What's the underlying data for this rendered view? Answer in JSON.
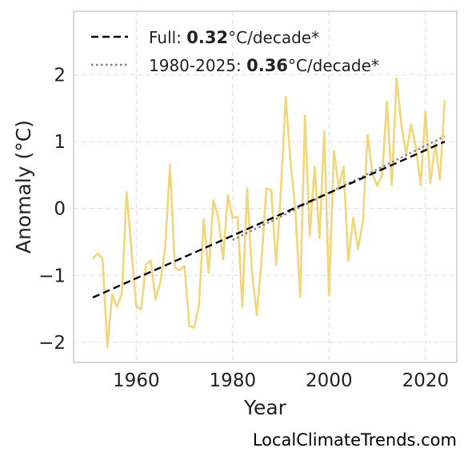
{
  "chart_data": {
    "type": "line",
    "title": "",
    "xlabel": "Year",
    "ylabel": "Anomaly (°C)",
    "xlim": [
      1947,
      2026.5
    ],
    "ylim": [
      -2.3,
      2.95
    ],
    "xticks": [
      1960,
      1980,
      2000,
      2020
    ],
    "yticks": [
      -2,
      -1,
      0,
      1,
      2
    ],
    "ytick_labels": [
      "−2",
      "−1",
      "0",
      "1",
      "2"
    ],
    "grid": true,
    "legend_position": "top-left",
    "colors": {
      "series": "#f2d67c",
      "full_trend": "#000000",
      "recent_trend": "#808080"
    },
    "series": [
      {
        "x": [
          1951,
          1952,
          1953,
          1954,
          1955,
          1956,
          1957,
          1958,
          1959,
          1960,
          1961,
          1962,
          1963,
          1964,
          1965,
          1966,
          1967,
          1968,
          1969,
          1970,
          1971,
          1972,
          1973,
          1974,
          1975,
          1976,
          1977,
          1978,
          1979,
          1980,
          1981,
          1982,
          1983,
          1984,
          1985,
          1986,
          1987,
          1988,
          1989,
          1990,
          1991,
          1992,
          1993,
          1994,
          1995,
          1996,
          1997,
          1998,
          1999,
          2000,
          2001,
          2002,
          2003,
          2004,
          2005,
          2006,
          2007,
          2008,
          2009,
          2010,
          2011,
          2012,
          2013,
          2014,
          2015,
          2016,
          2017,
          2018,
          2019,
          2020,
          2021,
          2022,
          2023,
          2024
        ],
        "values": [
          -0.75,
          -0.67,
          -0.75,
          -2.07,
          -1.28,
          -1.47,
          -1.28,
          0.24,
          -0.62,
          -1.46,
          -1.51,
          -0.83,
          -0.78,
          -1.36,
          -1.09,
          -0.58,
          0.66,
          -0.89,
          -0.92,
          -0.86,
          -1.76,
          -1.78,
          -1.44,
          -0.16,
          -0.96,
          0.12,
          -0.13,
          -0.76,
          0.2,
          -0.14,
          -0.12,
          -1.47,
          0.3,
          -0.95,
          -1.59,
          -0.76,
          0.3,
          0.28,
          -0.84,
          0.27,
          1.67,
          0.7,
          -0.02,
          -1.32,
          1.39,
          -0.41,
          0.63,
          -0.44,
          1.15,
          -1.3,
          0.86,
          0.32,
          0.62,
          -0.78,
          -0.14,
          -0.6,
          -0.2,
          1.1,
          0.51,
          0.34,
          0.5,
          1.6,
          0.35,
          1.95,
          1.25,
          0.81,
          1.25,
          0.92,
          0.35,
          1.45,
          0.38,
          0.97,
          0.44,
          1.62
        ]
      }
    ],
    "trend_lines": [
      {
        "label_prefix": "Full: ",
        "rate": "0.32",
        "label_suffix": "°C/decade*",
        "x": [
          1951,
          2024
        ],
        "y": [
          -1.33,
          1.0
        ]
      },
      {
        "label_prefix": "1980-2025: ",
        "rate": "0.36",
        "label_suffix": "°C/decade*",
        "x": [
          1980,
          2024
        ],
        "y": [
          -0.47,
          1.08
        ]
      }
    ]
  },
  "footer": "LocalClimateTrends.com"
}
